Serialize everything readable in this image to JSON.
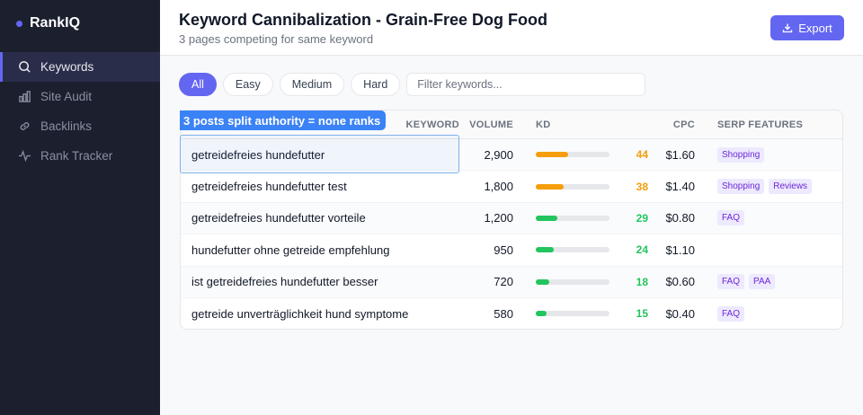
{
  "app": {
    "name": "RankIQ"
  },
  "sidebar": {
    "items": [
      {
        "label": "Keywords",
        "icon": "search-icon"
      },
      {
        "label": "Site Audit",
        "icon": "bar-chart-icon"
      },
      {
        "label": "Backlinks",
        "icon": "link-icon"
      },
      {
        "label": "Rank Tracker",
        "icon": "activity-icon"
      }
    ]
  },
  "header": {
    "title": "Keyword Cannibalization - Grain-Free Dog Food",
    "subtitle": "3 pages competing for same keyword",
    "export_label": "Export"
  },
  "filters": {
    "chips": [
      "All",
      "Easy",
      "Medium",
      "Hard"
    ],
    "active": "All",
    "search_placeholder": "Filter keywords..."
  },
  "annotation": "3 posts split authority = none ranks",
  "table": {
    "columns": [
      "KEYWORD",
      "VOLUME",
      "KD",
      "CPC",
      "SERP FEATURES"
    ],
    "rows": [
      {
        "keyword": "getreidefreies hundefutter",
        "volume": "2,900",
        "kd": 44,
        "cpc": "$1.60",
        "serp": [
          "Shopping"
        ]
      },
      {
        "keyword": "getreidefreies hundefutter test",
        "volume": "1,800",
        "kd": 38,
        "cpc": "$1.40",
        "serp": [
          "Shopping",
          "Reviews"
        ]
      },
      {
        "keyword": "getreidefreies hundefutter vorteile",
        "volume": "1,200",
        "kd": 29,
        "cpc": "$0.80",
        "serp": [
          "FAQ"
        ]
      },
      {
        "keyword": "hundefutter ohne getreide empfehlung",
        "volume": "950",
        "kd": 24,
        "cpc": "$1.10",
        "serp": []
      },
      {
        "keyword": "ist getreidefreies hundefutter besser",
        "volume": "720",
        "kd": 18,
        "cpc": "$0.60",
        "serp": [
          "FAQ",
          "PAA"
        ]
      },
      {
        "keyword": "getreide unverträglichkeit hund symptome",
        "volume": "580",
        "kd": 15,
        "cpc": "$0.40",
        "serp": [
          "FAQ"
        ]
      }
    ]
  },
  "colors": {
    "accent": "#6366f1",
    "kd_medium": "#f59e0b",
    "kd_easy": "#22c55e",
    "annotation": "#3b82f6"
  }
}
